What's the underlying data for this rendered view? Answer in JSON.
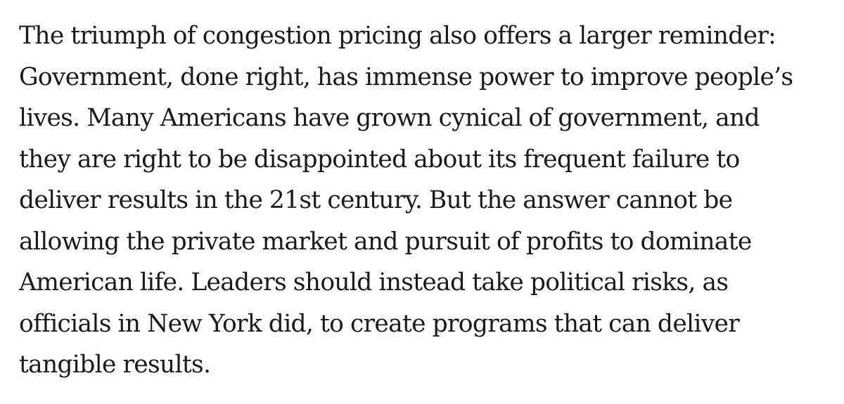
{
  "paragraph": {
    "lines": [
      "The triumph of congestion pricing also offers a larger reminder:",
      "Government, done right, has immense power to improve people’s",
      "lives. Many Americans have grown cynical of government, and",
      "they are right to be disappointed about its frequent failure to",
      "deliver results in the 21st century. But the answer cannot be",
      "allowing the private market and pursuit of profits to dominate",
      "American life. Leaders should instead take political risks, as",
      "officials in New York did, to create programs that can deliver",
      "tangible results."
    ]
  }
}
